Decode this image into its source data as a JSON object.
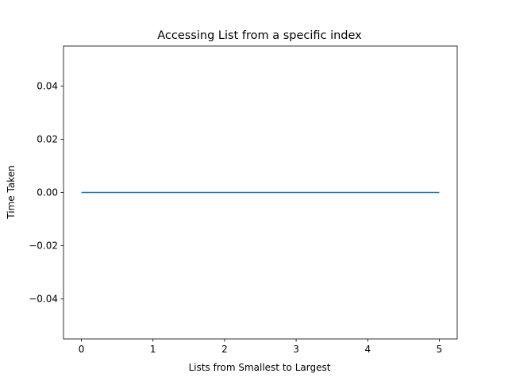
{
  "chart_data": {
    "type": "line",
    "title": "Accessing List from a specific index",
    "xlabel": "Lists from Smallest to Largest",
    "ylabel": "Time Taken",
    "x": [
      0,
      1,
      2,
      3,
      4,
      5
    ],
    "series": [
      {
        "values": [
          0.0,
          0.0,
          0.0,
          0.0,
          0.0,
          0.0
        ],
        "color": "#1f77b4"
      }
    ],
    "xlim": [
      -0.25,
      5.25
    ],
    "ylim": [
      -0.055,
      0.055
    ],
    "xticks": [
      0,
      1,
      2,
      3,
      4,
      5
    ],
    "xtick_labels": [
      "0",
      "1",
      "2",
      "3",
      "4",
      "5"
    ],
    "yticks": [
      -0.04,
      -0.02,
      0.0,
      0.02,
      0.04
    ],
    "ytick_labels": [
      "−0.04",
      "−0.02",
      "0.00",
      "0.02",
      "0.04"
    ],
    "grid": false,
    "legend": false
  }
}
